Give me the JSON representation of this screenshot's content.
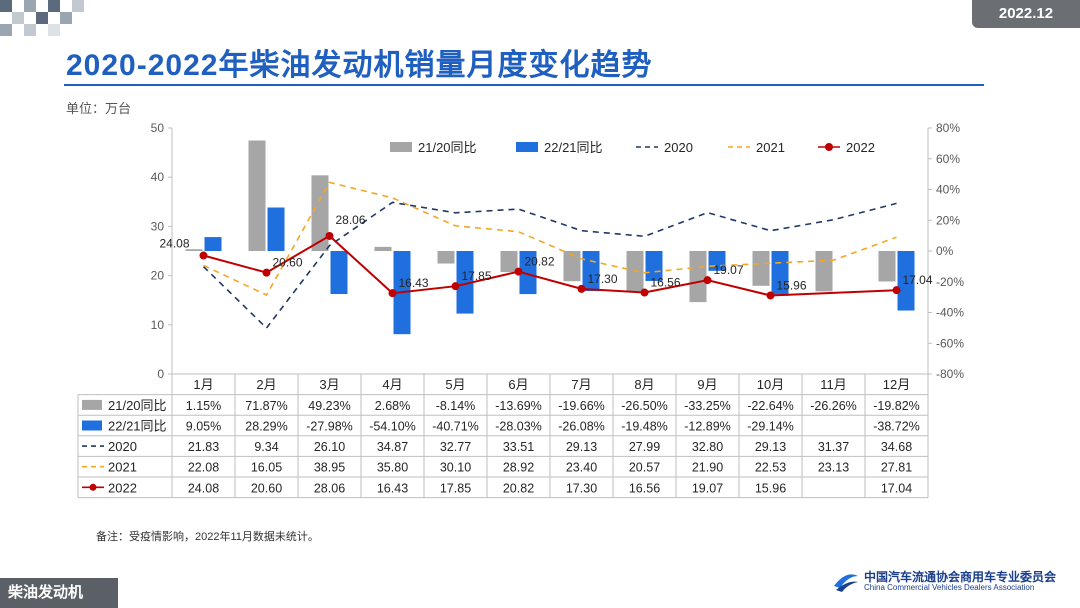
{
  "header": {
    "date": "2022.12",
    "title": "2020-2022年柴油发动机销量月度变化趋势",
    "unit": "单位：万台"
  },
  "footer": {
    "note": "备注：受疫情影响，2022年11月数据未统计。",
    "section": "柴油发动机",
    "org_cn": "中国汽车流通协会商用车专业委员会",
    "org_en": "China Commercial Vehicles Dealers Association"
  },
  "colors": {
    "accent": "#1f5fbf",
    "bar2120": "#a6a6a6",
    "bar2221": "#1f6fde",
    "line2020": "#1f3864",
    "line2021": "#f5a623",
    "line2022": "#c00000"
  },
  "chart_data": {
    "type": "bar+line",
    "categories": [
      "1月",
      "2月",
      "3月",
      "4月",
      "5月",
      "6月",
      "7月",
      "8月",
      "9月",
      "10月",
      "11月",
      "12月"
    ],
    "left_axis": {
      "min": 0,
      "max": 50,
      "step": 10,
      "ticks": [
        "0",
        "10",
        "20",
        "30",
        "40",
        "50"
      ]
    },
    "right_axis": {
      "min": -80,
      "max": 80,
      "step": 20,
      "ticks": [
        "-80%",
        "-60%",
        "-40%",
        "-20%",
        "0%",
        "20%",
        "40%",
        "60%",
        "80%"
      ]
    },
    "bar_series": [
      {
        "name": "21/20同比",
        "axis": "right",
        "values": [
          1.15,
          71.87,
          49.23,
          2.68,
          -8.14,
          -13.69,
          -19.66,
          -26.5,
          -33.25,
          -22.64,
          -26.26,
          -19.82
        ],
        "labels": [
          "1.15%",
          "71.87%",
          "49.23%",
          "2.68%",
          "-8.14%",
          "-13.69%",
          "-19.66%",
          "-26.50%",
          "-33.25%",
          "-22.64%",
          "-26.26%",
          "-19.82%"
        ]
      },
      {
        "name": "22/21同比",
        "axis": "right",
        "values": [
          9.05,
          28.29,
          -27.98,
          -54.1,
          -40.71,
          -28.03,
          -26.08,
          -19.48,
          -12.89,
          -29.14,
          null,
          -38.72
        ],
        "labels": [
          "9.05%",
          "28.29%",
          "-27.98%",
          "-54.10%",
          "-40.71%",
          "-28.03%",
          "-26.08%",
          "-19.48%",
          "-12.89%",
          "-29.14%",
          "",
          "-38.72%"
        ]
      }
    ],
    "line_series": [
      {
        "name": "2020",
        "axis": "left",
        "style": "dashed",
        "values": [
          21.83,
          9.34,
          26.1,
          34.87,
          32.77,
          33.51,
          29.13,
          27.99,
          32.8,
          29.13,
          31.37,
          34.68
        ],
        "labels": [
          "21.83",
          "9.34",
          "26.10",
          "34.87",
          "32.77",
          "33.51",
          "29.13",
          "27.99",
          "32.80",
          "29.13",
          "31.37",
          "34.68"
        ]
      },
      {
        "name": "2021",
        "axis": "left",
        "style": "dashed",
        "values": [
          22.08,
          16.05,
          38.95,
          35.8,
          30.1,
          28.92,
          23.4,
          20.57,
          21.9,
          22.53,
          23.13,
          27.81
        ],
        "labels": [
          "22.08",
          "16.05",
          "38.95",
          "35.80",
          "30.10",
          "28.92",
          "23.40",
          "20.57",
          "21.90",
          "22.53",
          "23.13",
          "27.81"
        ]
      },
      {
        "name": "2022",
        "axis": "left",
        "style": "solid-marker",
        "values": [
          24.08,
          20.6,
          28.06,
          16.43,
          17.85,
          20.82,
          17.3,
          16.56,
          19.07,
          15.96,
          null,
          17.04
        ],
        "labels": [
          "24.08",
          "20.60",
          "28.06",
          "16.43",
          "17.85",
          "20.82",
          "17.30",
          "16.56",
          "19.07",
          "15.96",
          "",
          "17.04"
        ]
      }
    ],
    "legend": [
      "21/20同比",
      "22/21同比",
      "2020",
      "2021",
      "2022"
    ],
    "legend_position": "top-right"
  }
}
